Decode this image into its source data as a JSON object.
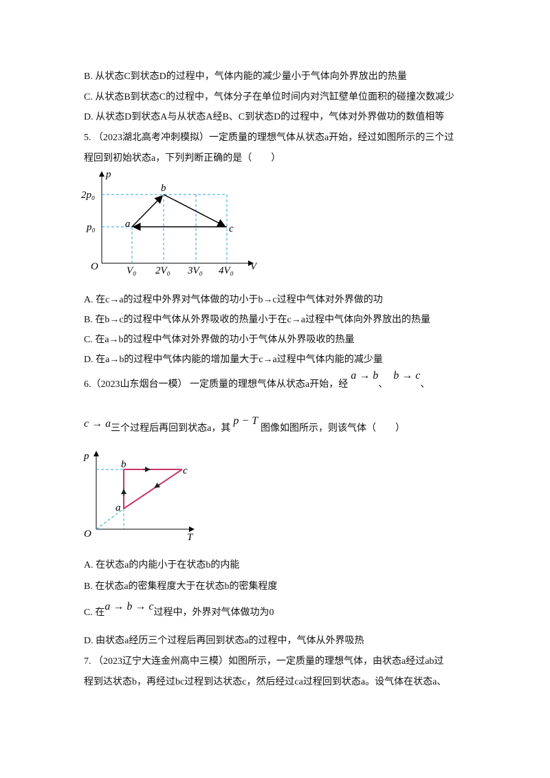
{
  "q4": {
    "options": [
      "B. 从状态C到状态D的过程中，气体内能的减少量小于气体向外界放出的热量",
      "C. 从状态B到状态C的过程中，气体分子在单位时间内对汽缸壁单位面积的碰撞次数减少",
      "D. 从状态D到状态A与从状态A经B、C到状态D的过程中，气体对外界做功的数值相等"
    ]
  },
  "q5": {
    "stem": [
      "5. （2023湖北高考冲刺模拟）一定质量的理想气体从状态a开始，经过如图所示的三个过",
      "程回到初始状态a，下列判断正确的是（　　）"
    ],
    "figure": {
      "y_axis": "p",
      "x_axis": "V",
      "origin": "O",
      "y_labels": [
        "2p₀",
        "p₀"
      ],
      "x_labels": [
        "V₀",
        "2V₀",
        "3V₀",
        "4V₀"
      ],
      "points": [
        "a",
        "b",
        "c"
      ]
    },
    "options": [
      "A. 在c→a的过程中外界对气体做的功小于b→c过程中气体对外界做的功",
      "B. 在b→c的过程中气体从外界吸收的热量小于在c→a过程中气体向外界放出的热量",
      "C. 在a→b的过程中气体对外界做的功小于气体从外界吸收的热量",
      "D. 在a→b的过程中气体内能的增加量大于c→a过程中气体内能的减少量"
    ]
  },
  "q6": {
    "stem1": [
      "6.（2023山东烟台一模） 一定质量的理想气体从状态a开始，经",
      "a → b",
      "、",
      "b → c",
      "、"
    ],
    "stem2": [
      "c → a",
      "三个过程后再回到状态a，其",
      "p − T",
      "图像如图所示，则该气体（　　）"
    ],
    "figure": {
      "y_axis": "p",
      "x_axis": "T",
      "origin": "O",
      "points": [
        "a",
        "b",
        "c"
      ]
    },
    "option_a": "A. 在状态a的内能小于在状态b的内能",
    "option_b": "B. 在状态a的密集程度大于在状态b的密集程度",
    "option_c": [
      "C. 在",
      "a → b → c",
      "过程中，外界对气体做功为0"
    ],
    "option_d": "D. 由状态a经历三个过程后再回到状态a的过程中，气体从外界吸热"
  },
  "q7": {
    "stem": [
      "7. （2023辽宁大连金州高中三模）如图所示，一定质量的理想气体，由状态a经过ab过",
      "程到达状态b，再经过bc过程到达状态c，然后经过ca过程回到状态a。设气体在状态a、"
    ]
  }
}
